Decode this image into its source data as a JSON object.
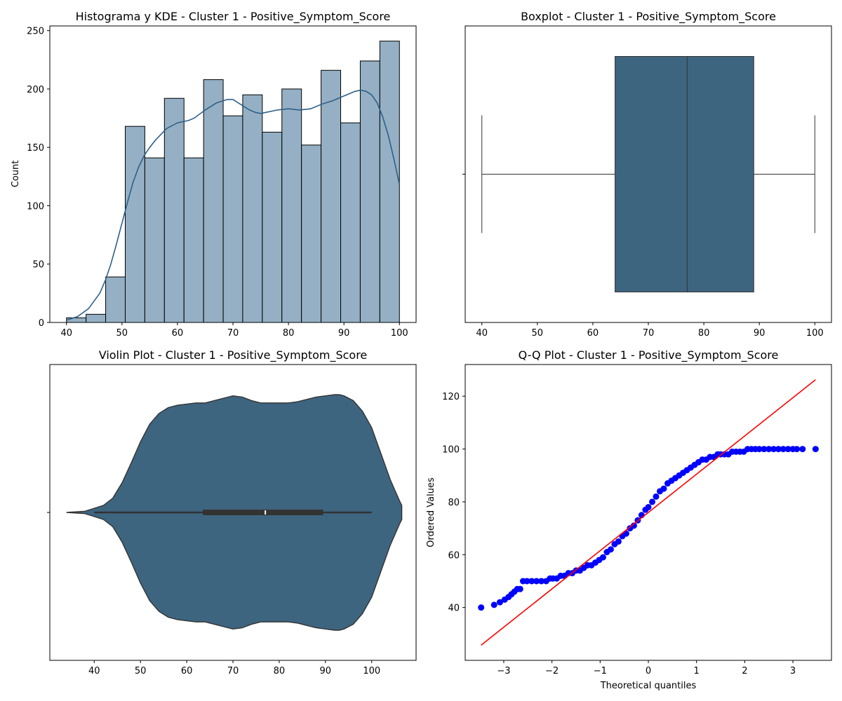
{
  "colors": {
    "bar_fill": "#95b0c4",
    "kde_line": "#2e6089",
    "box_fill": "#3e6580",
    "qq_points": "#0000ff",
    "qq_line": "#ff0000"
  },
  "chart_data": [
    {
      "type": "histogram",
      "title": "Histograma y KDE - Cluster 1 - Positive_Symptom_Score",
      "xlabel": "",
      "ylabel": "Count",
      "xlim": [
        37,
        103
      ],
      "ylim": [
        0,
        254
      ],
      "xticks": [
        40,
        50,
        60,
        70,
        80,
        90,
        100
      ],
      "yticks": [
        0,
        50,
        100,
        150,
        200,
        250
      ],
      "bin_edges": [
        40,
        43.53,
        47.06,
        50.59,
        54.12,
        57.65,
        61.18,
        64.71,
        68.24,
        71.76,
        75.29,
        78.82,
        82.35,
        85.88,
        89.41,
        92.94,
        96.47,
        100
      ],
      "counts": [
        4,
        7,
        39,
        168,
        141,
        192,
        141,
        208,
        177,
        195,
        163,
        200,
        152,
        216,
        171,
        224,
        241
      ],
      "kde": {
        "x": [
          40,
          42,
          44,
          46,
          47,
          48,
          49,
          50,
          51,
          52,
          53,
          54,
          55,
          56,
          58,
          60,
          62,
          63,
          65,
          67,
          69,
          70,
          71,
          73,
          74,
          75,
          76,
          78,
          80,
          82,
          84,
          86,
          88,
          90,
          92,
          93,
          94,
          95,
          96,
          97,
          98,
          99,
          100
        ],
        "y": [
          2,
          5,
          12,
          25,
          36,
          50,
          67,
          85,
          103,
          120,
          133,
          143,
          150,
          156,
          166,
          171,
          173,
          175,
          182,
          188,
          191,
          191,
          188,
          182,
          180,
          179,
          180,
          182,
          183,
          182,
          183,
          187,
          190,
          194,
          198,
          199,
          198,
          195,
          188,
          176,
          160,
          140,
          118
        ]
      }
    },
    {
      "type": "box",
      "title": "Boxplot - Cluster 1 - Positive_Symptom_Score",
      "xlabel": "",
      "ylabel": "",
      "xlim": [
        37,
        103
      ],
      "xticks": [
        40,
        50,
        60,
        70,
        80,
        90,
        100
      ],
      "yticks": [
        ""
      ],
      "whisker_low": 40,
      "q1": 64,
      "median": 77,
      "q3": 89,
      "whisker_high": 100
    },
    {
      "type": "violin",
      "title": "Violin Plot - Cluster 1 - Positive_Symptom_Score",
      "xlabel": "",
      "ylabel": "",
      "xlim": [
        30.4,
        109.6
      ],
      "xticks": [
        40,
        50,
        60,
        70,
        80,
        90,
        100
      ],
      "yticks": [
        ""
      ],
      "density": {
        "x": [
          34,
          38,
          42,
          44,
          46,
          48,
          50,
          52,
          54,
          56,
          58,
          60,
          62,
          64,
          66,
          68,
          70,
          72,
          74,
          76,
          78,
          80,
          82,
          84,
          86,
          88,
          90,
          92,
          93,
          94,
          96,
          98,
          100,
          102,
          104,
          106,
          106.5
        ],
        "w": [
          0,
          0.01,
          0.06,
          0.12,
          0.25,
          0.42,
          0.6,
          0.75,
          0.84,
          0.89,
          0.91,
          0.92,
          0.93,
          0.93,
          0.95,
          0.97,
          0.99,
          0.98,
          0.95,
          0.93,
          0.93,
          0.93,
          0.93,
          0.94,
          0.96,
          0.98,
          0.99,
          1.0,
          1.0,
          0.99,
          0.95,
          0.86,
          0.72,
          0.5,
          0.28,
          0.1,
          0.06
        ]
      },
      "inner_box": {
        "whisker_low": 40,
        "q1": 63.5,
        "median": 77,
        "q3": 89.5,
        "whisker_high": 100
      }
    },
    {
      "type": "scatter",
      "title": "Q-Q Plot - Cluster 1 - Positive_Symptom_Score",
      "xlabel": "Theoretical quantiles",
      "ylabel": "Ordered Values",
      "xlim": [
        -3.8,
        3.8
      ],
      "ylim": [
        20,
        132
      ],
      "xticks": [
        -3,
        -2,
        -1,
        0,
        1,
        2,
        3
      ],
      "xtick_labels": [
        "−3",
        "−2",
        "−1",
        "0",
        "1",
        "2",
        "3"
      ],
      "yticks": [
        40,
        60,
        80,
        100,
        120
      ],
      "fit_line": {
        "slope": 14.48,
        "intercept": 76.0,
        "x": [
          -3.47,
          3.47
        ]
      },
      "points": {
        "x": [
          -3.47,
          -3.2,
          -3.08,
          -2.98,
          -2.9,
          -2.84,
          -2.78,
          -2.72,
          -2.66,
          -2.6,
          -2.52,
          -2.42,
          -2.32,
          -2.22,
          -2.12,
          -2.04,
          -1.98,
          -1.9,
          -1.82,
          -1.74,
          -1.66,
          -1.58,
          -1.5,
          -1.42,
          -1.34,
          -1.26,
          -1.18,
          -1.1,
          -1.02,
          -0.94,
          -0.86,
          -0.78,
          -0.7,
          -0.62,
          -0.54,
          -0.46,
          -0.38,
          -0.3,
          -0.22,
          -0.14,
          -0.06,
          0.0,
          0.08,
          0.16,
          0.24,
          0.32,
          0.4,
          0.48,
          0.56,
          0.64,
          0.72,
          0.8,
          0.88,
          0.96,
          1.04,
          1.12,
          1.2,
          1.28,
          1.36,
          1.44,
          1.5,
          1.58,
          1.66,
          1.74,
          1.82,
          1.9,
          1.98,
          2.06,
          2.14,
          2.22,
          2.3,
          2.4,
          2.5,
          2.6,
          2.7,
          2.8,
          2.9,
          3.0,
          3.08,
          3.2,
          3.47
        ],
        "y": [
          40,
          41,
          42,
          43,
          44,
          45,
          46,
          47,
          47,
          50,
          50,
          50,
          50,
          50,
          50,
          51,
          51,
          51,
          52,
          52,
          53,
          53,
          54,
          54,
          55,
          56,
          56,
          57,
          58,
          59,
          61,
          62,
          64,
          65,
          67,
          68,
          70,
          71,
          73,
          75,
          77,
          78,
          80,
          82,
          84,
          85,
          87,
          88,
          89,
          90,
          91,
          92,
          93,
          94,
          95,
          96,
          96,
          97,
          97,
          98,
          98,
          98,
          98,
          99,
          99,
          99,
          99,
          100,
          100,
          100,
          100,
          100,
          100,
          100,
          100,
          100,
          100,
          100,
          100,
          100,
          100
        ]
      }
    }
  ]
}
